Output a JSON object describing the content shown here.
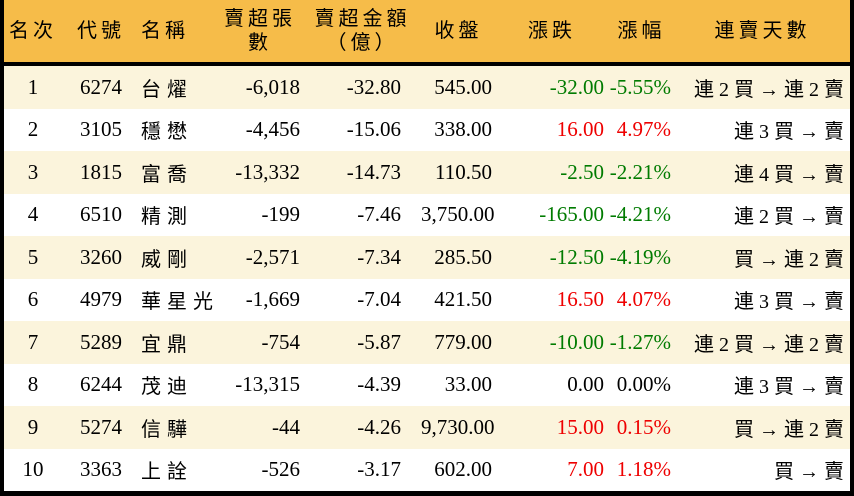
{
  "header": {
    "rank": "名次",
    "code": "代號",
    "name": "名稱",
    "volume": "賣超張數",
    "amount": "賣超金額\n（億）",
    "close": "收盤",
    "change": "漲跌",
    "change_pct": "漲幅",
    "streak": "連賣天數"
  },
  "rows": [
    {
      "rank": "1",
      "code": "6274",
      "name": "台燿",
      "volume": "-6,018",
      "amount": "-32.80",
      "close": "545.00",
      "change": "-32.00",
      "change_pct": "-5.55%",
      "streak": "連 2 買 → 連 2 賣",
      "trend": "down"
    },
    {
      "rank": "2",
      "code": "3105",
      "name": "穩懋",
      "volume": "-4,456",
      "amount": "-15.06",
      "close": "338.00",
      "change": "16.00",
      "change_pct": "4.97%",
      "streak": "連 3 買 → 賣",
      "trend": "up"
    },
    {
      "rank": "3",
      "code": "1815",
      "name": "富喬",
      "volume": "-13,332",
      "amount": "-14.73",
      "close": "110.50",
      "change": "-2.50",
      "change_pct": "-2.21%",
      "streak": "連 4 買 → 賣",
      "trend": "down"
    },
    {
      "rank": "4",
      "code": "6510",
      "name": "精測",
      "volume": "-199",
      "amount": "-7.46",
      "close": "3,750.00",
      "change": "-165.00",
      "change_pct": "-4.21%",
      "streak": "連 2 買 → 賣",
      "trend": "down"
    },
    {
      "rank": "5",
      "code": "3260",
      "name": "威剛",
      "volume": "-2,571",
      "amount": "-7.34",
      "close": "285.50",
      "change": "-12.50",
      "change_pct": "-4.19%",
      "streak": "買 → 連 2 賣",
      "trend": "down"
    },
    {
      "rank": "6",
      "code": "4979",
      "name": "華星光",
      "volume": "-1,669",
      "amount": "-7.04",
      "close": "421.50",
      "change": "16.50",
      "change_pct": "4.07%",
      "streak": "連 3 買 → 賣",
      "trend": "up"
    },
    {
      "rank": "7",
      "code": "5289",
      "name": "宜鼎",
      "volume": "-754",
      "amount": "-5.87",
      "close": "779.00",
      "change": "-10.00",
      "change_pct": "-1.27%",
      "streak": "連 2 買 → 連 2 賣",
      "trend": "down"
    },
    {
      "rank": "8",
      "code": "6244",
      "name": "茂迪",
      "volume": "-13,315",
      "amount": "-4.39",
      "close": "33.00",
      "change": "0.00",
      "change_pct": "0.00%",
      "streak": "連 3 買 → 賣",
      "trend": "flat"
    },
    {
      "rank": "9",
      "code": "5274",
      "name": "信驊",
      "volume": "-44",
      "amount": "-4.26",
      "close": "9,730.00",
      "change": "15.00",
      "change_pct": "0.15%",
      "streak": "買 → 連 2 賣",
      "trend": "up"
    },
    {
      "rank": "10",
      "code": "3363",
      "name": "上詮",
      "volume": "-526",
      "amount": "-3.17",
      "close": "602.00",
      "change": "7.00",
      "change_pct": "1.18%",
      "streak": "買 → 賣",
      "trend": "up"
    }
  ],
  "colors": {
    "header_bg": "#F6BC49",
    "row_odd_bg": "#FBF4DC",
    "row_even_bg": "#FFFFFF",
    "up_red": "#EE0000",
    "down_green": "#007B00",
    "flat_black": "#000000",
    "border_black": "#000000"
  },
  "chart_data": {
    "type": "table",
    "columns": [
      "名次",
      "代號",
      "名稱",
      "賣超張數",
      "賣超金額（億）",
      "收盤",
      "漲跌",
      "漲幅",
      "連賣天數"
    ],
    "rows": [
      [
        "1",
        "6274",
        "台燿",
        "-6,018",
        "-32.80",
        "545.00",
        "-32.00",
        "-5.55%",
        "連 2 買 → 連 2 賣"
      ],
      [
        "2",
        "3105",
        "穩懋",
        "-4,456",
        "-15.06",
        "338.00",
        "16.00",
        "4.97%",
        "連 3 買 → 賣"
      ],
      [
        "3",
        "1815",
        "富喬",
        "-13,332",
        "-14.73",
        "110.50",
        "-2.50",
        "-2.21%",
        "連 4 買 → 賣"
      ],
      [
        "4",
        "6510",
        "精測",
        "-199",
        "-7.46",
        "3,750.00",
        "-165.00",
        "-4.21%",
        "連 2 買 → 賣"
      ],
      [
        "5",
        "3260",
        "威剛",
        "-2,571",
        "-7.34",
        "285.50",
        "-12.50",
        "-4.19%",
        "買 → 連 2 賣"
      ],
      [
        "6",
        "4979",
        "華星光",
        "-1,669",
        "-7.04",
        "421.50",
        "16.50",
        "4.07%",
        "連 3 買 → 賣"
      ],
      [
        "7",
        "5289",
        "宜鼎",
        "-754",
        "-5.87",
        "779.00",
        "-10.00",
        "-1.27%",
        "連 2 買 → 連 2 賣"
      ],
      [
        "8",
        "6244",
        "茂迪",
        "-13,315",
        "-4.39",
        "33.00",
        "0.00",
        "0.00%",
        "連 3 買 → 賣"
      ],
      [
        "9",
        "5274",
        "信驊",
        "-44",
        "-4.26",
        "9,730.00",
        "15.00",
        "0.15%",
        "買 → 連 2 賣"
      ],
      [
        "10",
        "3363",
        "上詮",
        "-526",
        "-3.17",
        "602.00",
        "7.00",
        "1.18%",
        "買 → 賣"
      ]
    ]
  }
}
